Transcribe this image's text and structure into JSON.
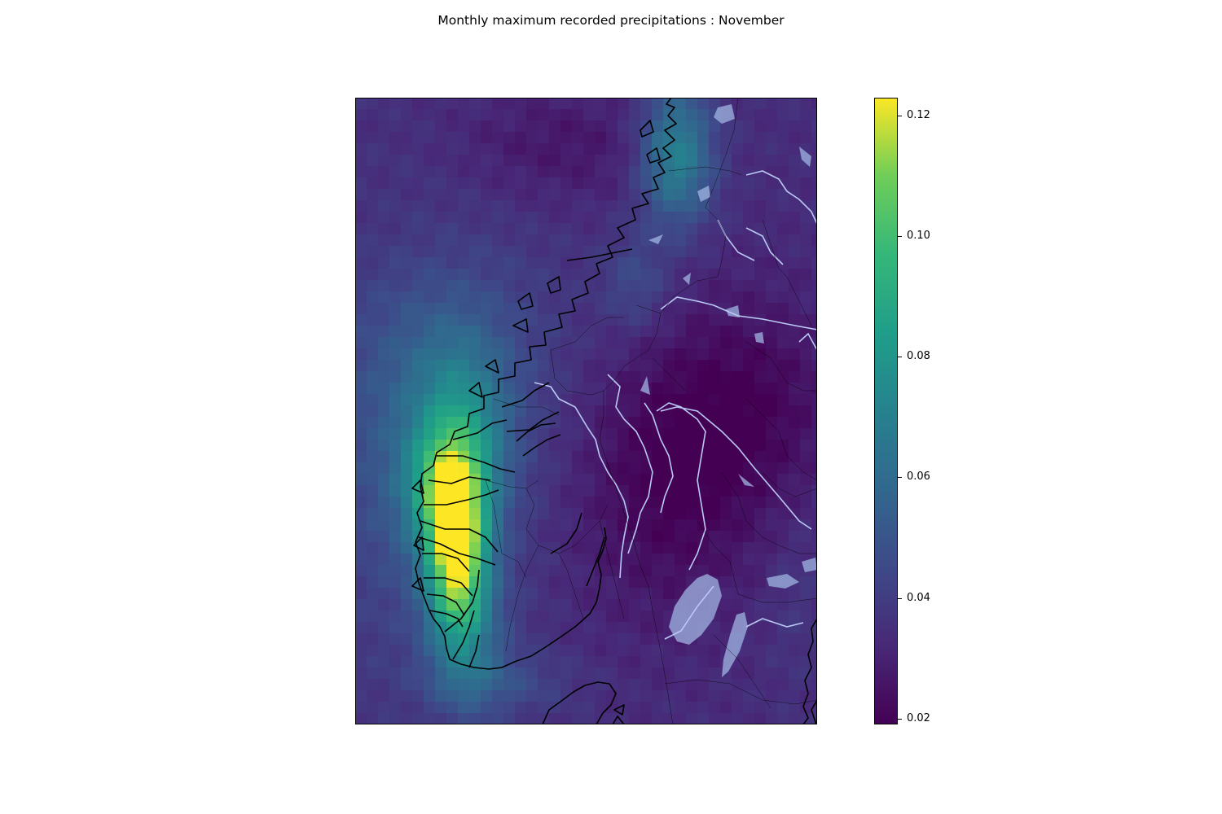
{
  "title": "Monthly maximum recorded precipitations : November",
  "colorbar": {
    "colormap": "viridis",
    "min": 0.019,
    "max": 0.123,
    "ticks": [
      "0.02",
      "0.04",
      "0.06",
      "0.08",
      "0.10",
      "0.12"
    ],
    "tick_values": [
      0.02,
      0.04,
      0.06,
      0.08,
      0.1,
      0.12
    ]
  },
  "map": {
    "region": "Southern Norway and western Sweden",
    "field": "gridded precipitation maximum",
    "coastline_color": "#000000",
    "lake_color": "#9fb4e2",
    "river_color": "#b9c9f4",
    "border_style": "thin black lines"
  }
}
